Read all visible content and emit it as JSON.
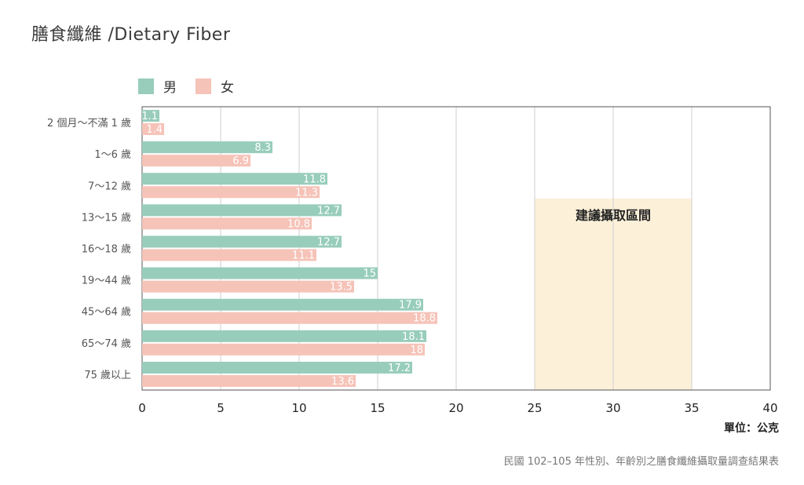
{
  "title": "膳食纖維 /Dietary Fiber",
  "legend": [
    {
      "label": "男",
      "color": "#98cdbb"
    },
    {
      "label": "女",
      "color": "#f6c3b8"
    }
  ],
  "unit": "單位：公克",
  "source": "民國 102–105 年性別、年齡別之膳食纖維攝取量調查結果表",
  "chart_data": {
    "type": "bar",
    "orientation": "horizontal",
    "categories": [
      "2 個月～不滿 1 歲",
      "1～6 歲",
      "7～12 歲",
      "13～15 歲",
      "16～18 歲",
      "19～44 歲",
      "45～64 歲",
      "65～74 歲",
      "75 歲以上"
    ],
    "series": [
      {
        "name": "男",
        "color": "#98cdbb",
        "values": [
          1.1,
          8.3,
          11.8,
          12.7,
          12.7,
          15,
          17.9,
          18.1,
          17.2
        ],
        "labels": [
          "1.1",
          "8.3",
          "11.8",
          "12.7",
          "12.7",
          "15",
          "17.9",
          "18.1",
          "17.2"
        ]
      },
      {
        "name": "女",
        "color": "#f6c3b8",
        "values": [
          1.4,
          6.9,
          11.3,
          10.8,
          11.1,
          13.5,
          18.8,
          18,
          13.6
        ],
        "labels": [
          "1.4",
          "6.9",
          "11.3",
          "10.8",
          "11.1",
          "13.5",
          "18.8",
          "18",
          "13.6"
        ]
      }
    ],
    "xlim": [
      0,
      40
    ],
    "xticks": [
      "0",
      "5",
      "10",
      "15",
      "20",
      "25",
      "30",
      "35",
      "40"
    ],
    "grid": "vertical",
    "legend_position": "top-left",
    "annotation": {
      "label": "建議攝取區間",
      "range": [
        25,
        35
      ],
      "color": "#fcf0d9"
    }
  }
}
